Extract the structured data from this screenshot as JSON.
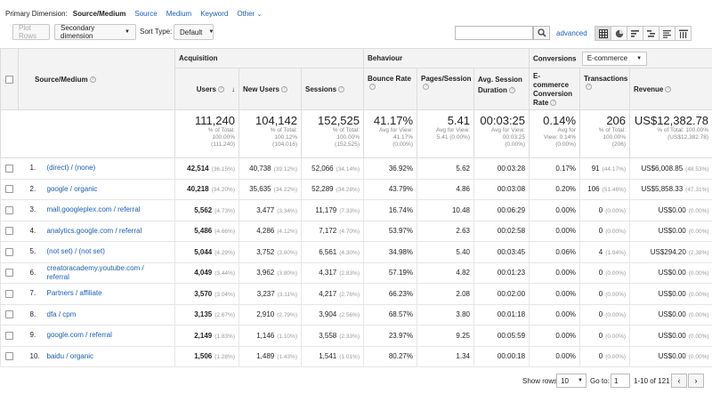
{
  "primary_dimension": {
    "label": "Primary Dimension:",
    "options": [
      {
        "label": "Source/Medium",
        "active": true
      },
      {
        "label": "Source",
        "active": false
      },
      {
        "label": "Medium",
        "active": false
      },
      {
        "label": "Keyword",
        "active": false
      },
      {
        "label": "Other",
        "active": false
      }
    ]
  },
  "toolbar": {
    "plot_rows": "Plot Rows",
    "secondary_dimension": "Secondary dimension",
    "sort_type_label": "Sort Type:",
    "sort_type_value": "Default",
    "search_placeholder": "",
    "advanced": "advanced",
    "view_icons": [
      "table-view-icon",
      "pie-view-icon",
      "performance-view-icon",
      "comparison-view-icon",
      "term-cloud-view-icon",
      "pivot-view-icon"
    ]
  },
  "groups": {
    "acquisition": "Acquisition",
    "behaviour": "Behaviour",
    "conversions": "Conversions",
    "conversions_select": "E-commerce"
  },
  "columns": {
    "source_medium": "Source/Medium",
    "users": "Users",
    "new_users": "New Users",
    "sessions": "Sessions",
    "bounce_rate": "Bounce Rate",
    "pages_session": "Pages/Session",
    "avg_session_duration": "Avg. Session Duration",
    "ecommerce_conversion_rate": "E-commerce Conversion Rate",
    "transactions": "Transactions",
    "revenue": "Revenue"
  },
  "totals": {
    "users": {
      "value": "111,240",
      "lines": [
        "% of Total:",
        "100.00%",
        "(111,240)"
      ]
    },
    "new_users": {
      "value": "104,142",
      "lines": [
        "% of Total:",
        "100.12%",
        "(104,016)"
      ]
    },
    "sessions": {
      "value": "152,525",
      "lines": [
        "% of Total:",
        "100.00%",
        "(152,525)"
      ]
    },
    "bounce_rate": {
      "value": "41.17%",
      "lines": [
        "Avg for View:",
        "41.17%",
        "(0.00%)"
      ]
    },
    "pages_session": {
      "value": "5.41",
      "lines": [
        "Avg for View:",
        "5.41 (0.00%)"
      ]
    },
    "avg_session_duration": {
      "value": "00:03:25",
      "lines": [
        "Avg for View:",
        "00:03:25",
        "(0.00%)"
      ]
    },
    "conversion_rate": {
      "value": "0.14%",
      "lines": [
        "Avg for",
        "View: 0.14%",
        "(0.00%)"
      ]
    },
    "transactions": {
      "value": "206",
      "lines": [
        "% of Total:",
        "100.00%",
        "(206)"
      ]
    },
    "revenue": {
      "value": "US$12,382.78",
      "lines": [
        "% of Total: 100.00%",
        "(US$12,382.78)"
      ]
    }
  },
  "rows": [
    {
      "num": "1.",
      "source": "(direct) / (none)",
      "users": "42,514",
      "users_pct": "(36.15%)",
      "new_users": "40,738",
      "new_users_pct": "(39.12%)",
      "sessions": "52,066",
      "sessions_pct": "(34.14%)",
      "bounce": "36.92%",
      "pages": "5.62",
      "duration": "00:03:28",
      "conv": "0.17%",
      "trans": "91",
      "trans_pct": "(44.17%)",
      "revenue": "US$6,008.85",
      "revenue_pct": "(48.53%)"
    },
    {
      "num": "2.",
      "source": "google / organic",
      "users": "40,218",
      "users_pct": "(34.20%)",
      "new_users": "35,635",
      "new_users_pct": "(34.22%)",
      "sessions": "52,289",
      "sessions_pct": "(34.28%)",
      "bounce": "43.79%",
      "pages": "4.86",
      "duration": "00:03:08",
      "conv": "0.20%",
      "trans": "106",
      "trans_pct": "(51.46%)",
      "revenue": "US$5,858.33",
      "revenue_pct": "(47.31%)"
    },
    {
      "num": "3.",
      "source": "mall.googleplex.com / referral",
      "users": "5,562",
      "users_pct": "(4.73%)",
      "new_users": "3,477",
      "new_users_pct": "(3.34%)",
      "sessions": "11,179",
      "sessions_pct": "(7.33%)",
      "bounce": "16.74%",
      "pages": "10.48",
      "duration": "00:06:29",
      "conv": "0.00%",
      "trans": "0",
      "trans_pct": "(0.00%)",
      "revenue": "US$0.00",
      "revenue_pct": "(0.00%)"
    },
    {
      "num": "4.",
      "source": "analytics.google.com / referral",
      "users": "5,486",
      "users_pct": "(4.66%)",
      "new_users": "4,286",
      "new_users_pct": "(4.12%)",
      "sessions": "7,172",
      "sessions_pct": "(4.70%)",
      "bounce": "53.97%",
      "pages": "2.63",
      "duration": "00:02:58",
      "conv": "0.00%",
      "trans": "0",
      "trans_pct": "(0.00%)",
      "revenue": "US$0.00",
      "revenue_pct": "(0.00%)"
    },
    {
      "num": "5.",
      "source": "(not set) / (not set)",
      "users": "5,044",
      "users_pct": "(4.29%)",
      "new_users": "3,752",
      "new_users_pct": "(3.60%)",
      "sessions": "6,561",
      "sessions_pct": "(4.30%)",
      "bounce": "34.98%",
      "pages": "5.40",
      "duration": "00:03:45",
      "conv": "0.06%",
      "trans": "4",
      "trans_pct": "(1.94%)",
      "revenue": "US$294.20",
      "revenue_pct": "(2.38%)"
    },
    {
      "num": "6.",
      "source": "creatoracademy.youtube.com / referral",
      "users": "4,049",
      "users_pct": "(3.44%)",
      "new_users": "3,962",
      "new_users_pct": "(3.80%)",
      "sessions": "4,317",
      "sessions_pct": "(2.83%)",
      "bounce": "57.19%",
      "pages": "4.82",
      "duration": "00:01:23",
      "conv": "0.00%",
      "trans": "0",
      "trans_pct": "(0.00%)",
      "revenue": "US$0.00",
      "revenue_pct": "(0.00%)"
    },
    {
      "num": "7.",
      "source": "Partners / affiliate",
      "users": "3,570",
      "users_pct": "(3.04%)",
      "new_users": "3,237",
      "new_users_pct": "(3.11%)",
      "sessions": "4,217",
      "sessions_pct": "(2.76%)",
      "bounce": "66.23%",
      "pages": "2.08",
      "duration": "00:02:00",
      "conv": "0.00%",
      "trans": "0",
      "trans_pct": "(0.00%)",
      "revenue": "US$0.00",
      "revenue_pct": "(0.00%)"
    },
    {
      "num": "8.",
      "source": "dfa / cpm",
      "users": "3,135",
      "users_pct": "(2.67%)",
      "new_users": "2,910",
      "new_users_pct": "(2.79%)",
      "sessions": "3,904",
      "sessions_pct": "(2.56%)",
      "bounce": "68.57%",
      "pages": "3.80",
      "duration": "00:01:18",
      "conv": "0.00%",
      "trans": "0",
      "trans_pct": "(0.00%)",
      "revenue": "US$0.00",
      "revenue_pct": "(0.00%)"
    },
    {
      "num": "9.",
      "source": "google.com / referral",
      "users": "2,149",
      "users_pct": "(1.83%)",
      "new_users": "1,146",
      "new_users_pct": "(1.10%)",
      "sessions": "3,558",
      "sessions_pct": "(2.33%)",
      "bounce": "23.97%",
      "pages": "9.25",
      "duration": "00:05:59",
      "conv": "0.00%",
      "trans": "0",
      "trans_pct": "(0.00%)",
      "revenue": "US$0.00",
      "revenue_pct": "(0.00%)"
    },
    {
      "num": "10.",
      "source": "baidu / organic",
      "users": "1,506",
      "users_pct": "(1.28%)",
      "new_users": "1,489",
      "new_users_pct": "(1.43%)",
      "sessions": "1,541",
      "sessions_pct": "(1.01%)",
      "bounce": "80.27%",
      "pages": "1.34",
      "duration": "00:00:18",
      "conv": "0.00%",
      "trans": "0",
      "trans_pct": "(0.00%)",
      "revenue": "US$0.00",
      "revenue_pct": "(0.00%)"
    }
  ],
  "footer": {
    "show_rows_label": "Show rows:",
    "show_rows_value": "10",
    "goto_label": "Go to:",
    "goto_value": "1",
    "range": "1-10 of 121"
  },
  "colors": {
    "link": "#1a5fb4",
    "header_bg": "#f3f3f3",
    "border": "#dcdcdc"
  }
}
